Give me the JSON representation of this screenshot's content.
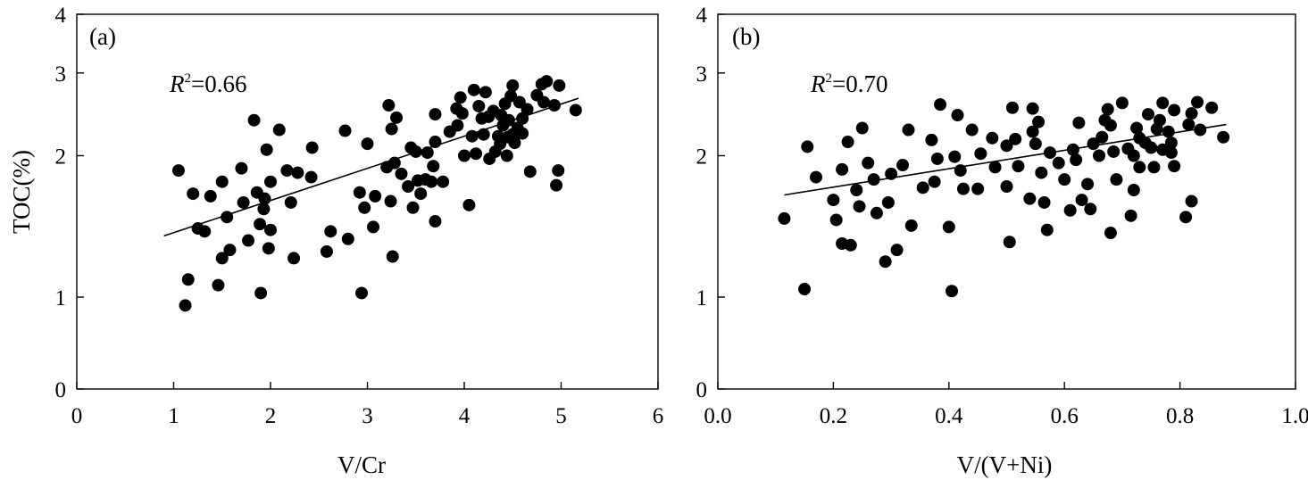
{
  "shared_y_axis": {
    "label": "TOC(%)",
    "ticks": [
      "0",
      "1",
      "2",
      "3",
      "4"
    ]
  },
  "chart_data": [
    {
      "type": "scatter",
      "panel_label": "(a)",
      "xlabel": "V/Cr",
      "ylabel": "TOC(%)",
      "xlim": [
        0,
        6
      ],
      "ylim": [
        0,
        4
      ],
      "x_ticks": [
        "0",
        "1",
        "2",
        "3",
        "4",
        "5",
        "6"
      ],
      "y_ticks": [
        "0",
        "1",
        "2",
        "3",
        "4"
      ],
      "y_scale": "log",
      "r2_text": "=0.66",
      "trend_line": {
        "x": [
          0.9,
          5.18
        ],
        "y": [
          1.35,
          2.65
        ]
      },
      "points": [
        [
          1.12,
          0.96
        ],
        [
          1.15,
          1.09
        ],
        [
          1.2,
          1.66
        ],
        [
          1.25,
          1.4
        ],
        [
          1.05,
          1.86
        ],
        [
          1.32,
          1.38
        ],
        [
          1.38,
          1.64
        ],
        [
          1.46,
          1.06
        ],
        [
          1.5,
          1.76
        ],
        [
          1.5,
          1.21
        ],
        [
          1.55,
          1.48
        ],
        [
          1.58,
          1.26
        ],
        [
          1.7,
          1.88
        ],
        [
          1.72,
          1.59
        ],
        [
          1.77,
          1.32
        ],
        [
          1.83,
          2.38
        ],
        [
          1.86,
          1.67
        ],
        [
          1.89,
          1.43
        ],
        [
          1.9,
          1.02
        ],
        [
          1.93,
          1.54
        ],
        [
          1.96,
          2.06
        ],
        [
          1.98,
          1.27
        ],
        [
          2.0,
          1.76
        ],
        [
          2.0,
          1.39
        ],
        [
          1.94,
          1.62
        ],
        [
          2.09,
          2.27
        ],
        [
          2.17,
          1.86
        ],
        [
          2.21,
          1.59
        ],
        [
          2.24,
          1.21
        ],
        [
          2.28,
          1.84
        ],
        [
          2.42,
          1.8
        ],
        [
          2.43,
          2.08
        ],
        [
          2.58,
          1.25
        ],
        [
          2.62,
          1.38
        ],
        [
          2.77,
          2.26
        ],
        [
          2.8,
          1.33
        ],
        [
          2.92,
          1.67
        ],
        [
          2.94,
          1.02
        ],
        [
          2.97,
          1.55
        ],
        [
          3.0,
          2.12
        ],
        [
          3.06,
          1.41
        ],
        [
          3.08,
          1.64
        ],
        [
          3.2,
          1.89
        ],
        [
          3.22,
          2.56
        ],
        [
          3.24,
          1.6
        ],
        [
          3.25,
          2.28
        ],
        [
          3.26,
          1.22
        ],
        [
          3.28,
          1.93
        ],
        [
          3.3,
          2.41
        ],
        [
          3.35,
          1.83
        ],
        [
          3.42,
          1.72
        ],
        [
          3.45,
          2.08
        ],
        [
          3.47,
          1.55
        ],
        [
          3.5,
          2.04
        ],
        [
          3.52,
          1.77
        ],
        [
          3.55,
          1.66
        ],
        [
          3.6,
          1.78
        ],
        [
          3.62,
          2.03
        ],
        [
          3.66,
          1.76
        ],
        [
          3.68,
          1.9
        ],
        [
          3.7,
          1.45
        ],
        [
          3.7,
          2.45
        ],
        [
          3.7,
          2.14
        ],
        [
          3.78,
          1.76
        ],
        [
          3.85,
          2.25
        ],
        [
          3.92,
          2.52
        ],
        [
          3.93,
          2.32
        ],
        [
          3.96,
          2.66
        ],
        [
          3.98,
          2.46
        ],
        [
          4.0,
          2.0
        ],
        [
          4.05,
          1.57
        ],
        [
          4.08,
          2.2
        ],
        [
          4.1,
          2.76
        ],
        [
          4.12,
          2.02
        ],
        [
          4.15,
          2.55
        ],
        [
          4.18,
          2.4
        ],
        [
          4.2,
          2.22
        ],
        [
          4.22,
          2.73
        ],
        [
          4.25,
          2.42
        ],
        [
          4.26,
          1.97
        ],
        [
          4.3,
          2.49
        ],
        [
          4.32,
          2.04
        ],
        [
          4.35,
          2.2
        ],
        [
          4.37,
          2.12
        ],
        [
          4.38,
          2.44
        ],
        [
          4.4,
          2.32
        ],
        [
          4.42,
          2.58
        ],
        [
          4.44,
          2.0
        ],
        [
          4.45,
          2.19
        ],
        [
          4.46,
          2.38
        ],
        [
          4.48,
          2.68
        ],
        [
          4.5,
          2.22
        ],
        [
          4.5,
          2.82
        ],
        [
          4.52,
          2.13
        ],
        [
          4.55,
          2.29
        ],
        [
          4.57,
          2.6
        ],
        [
          4.6,
          2.4
        ],
        [
          4.6,
          2.23
        ],
        [
          4.65,
          2.51
        ],
        [
          4.68,
          1.85
        ],
        [
          4.75,
          2.69
        ],
        [
          4.8,
          2.84
        ],
        [
          4.82,
          2.6
        ],
        [
          4.85,
          2.88
        ],
        [
          4.93,
          2.56
        ],
        [
          4.95,
          1.73
        ],
        [
          4.97,
          1.86
        ],
        [
          4.98,
          2.82
        ],
        [
          5.15,
          2.5
        ]
      ]
    },
    {
      "type": "scatter",
      "panel_label": "(b)",
      "xlabel": "V/(V+Ni)",
      "ylabel": "",
      "xlim": [
        0.0,
        1.0
      ],
      "ylim": [
        0,
        4
      ],
      "x_ticks": [
        "0.0",
        "0.2",
        "0.4",
        "0.6",
        "0.8",
        "1.0"
      ],
      "y_ticks": [
        "0",
        "1",
        "2",
        "3",
        "4"
      ],
      "y_scale": "log",
      "r2_text": "=0.70",
      "trend_line": {
        "x": [
          0.115,
          0.88
        ],
        "y": [
          1.65,
          2.33
        ]
      },
      "points": [
        [
          0.115,
          1.47
        ],
        [
          0.15,
          1.04
        ],
        [
          0.155,
          2.09
        ],
        [
          0.17,
          1.8
        ],
        [
          0.2,
          1.61
        ],
        [
          0.205,
          1.46
        ],
        [
          0.215,
          1.3
        ],
        [
          0.215,
          1.87
        ],
        [
          0.225,
          2.14
        ],
        [
          0.23,
          1.29
        ],
        [
          0.24,
          1.69
        ],
        [
          0.245,
          1.56
        ],
        [
          0.25,
          2.29
        ],
        [
          0.26,
          1.93
        ],
        [
          0.27,
          1.78
        ],
        [
          0.275,
          1.51
        ],
        [
          0.29,
          1.19
        ],
        [
          0.295,
          1.59
        ],
        [
          0.3,
          1.83
        ],
        [
          0.31,
          1.26
        ],
        [
          0.32,
          1.91
        ],
        [
          0.33,
          2.27
        ],
        [
          0.335,
          1.42
        ],
        [
          0.355,
          1.71
        ],
        [
          0.37,
          2.16
        ],
        [
          0.375,
          1.76
        ],
        [
          0.38,
          1.97
        ],
        [
          0.385,
          2.57
        ],
        [
          0.4,
          1.41
        ],
        [
          0.405,
          1.03
        ],
        [
          0.41,
          1.99
        ],
        [
          0.415,
          2.44
        ],
        [
          0.42,
          1.86
        ],
        [
          0.425,
          1.7
        ],
        [
          0.44,
          2.27
        ],
        [
          0.45,
          1.7
        ],
        [
          0.455,
          2.02
        ],
        [
          0.475,
          2.18
        ],
        [
          0.48,
          1.89
        ],
        [
          0.5,
          1.72
        ],
        [
          0.5,
          2.1
        ],
        [
          0.505,
          1.31
        ],
        [
          0.51,
          2.53
        ],
        [
          0.515,
          2.17
        ],
        [
          0.52,
          1.9
        ],
        [
          0.54,
          1.62
        ],
        [
          0.545,
          2.25
        ],
        [
          0.545,
          2.52
        ],
        [
          0.55,
          2.12
        ],
        [
          0.555,
          2.36
        ],
        [
          0.56,
          1.84
        ],
        [
          0.565,
          1.59
        ],
        [
          0.57,
          1.39
        ],
        [
          0.575,
          2.03
        ],
        [
          0.59,
          1.93
        ],
        [
          0.6,
          1.78
        ],
        [
          0.61,
          1.53
        ],
        [
          0.615,
          2.06
        ],
        [
          0.62,
          1.96
        ],
        [
          0.625,
          2.35
        ],
        [
          0.63,
          1.61
        ],
        [
          0.64,
          1.74
        ],
        [
          0.645,
          1.54
        ],
        [
          0.65,
          2.12
        ],
        [
          0.66,
          2.0
        ],
        [
          0.665,
          2.19
        ],
        [
          0.67,
          2.38
        ],
        [
          0.675,
          2.51
        ],
        [
          0.68,
          2.32
        ],
        [
          0.68,
          1.37
        ],
        [
          0.685,
          2.04
        ],
        [
          0.69,
          1.78
        ],
        [
          0.7,
          2.59
        ],
        [
          0.71,
          2.07
        ],
        [
          0.715,
          1.49
        ],
        [
          0.72,
          2.0
        ],
        [
          0.72,
          1.69
        ],
        [
          0.725,
          2.29
        ],
        [
          0.73,
          1.89
        ],
        [
          0.73,
          2.18
        ],
        [
          0.74,
          2.13
        ],
        [
          0.745,
          2.45
        ],
        [
          0.75,
          2.08
        ],
        [
          0.755,
          1.89
        ],
        [
          0.76,
          2.28
        ],
        [
          0.765,
          2.38
        ],
        [
          0.77,
          2.06
        ],
        [
          0.77,
          2.59
        ],
        [
          0.78,
          2.25
        ],
        [
          0.785,
          2.13
        ],
        [
          0.785,
          2.03
        ],
        [
          0.79,
          1.9
        ],
        [
          0.79,
          2.5
        ],
        [
          0.81,
          1.48
        ],
        [
          0.815,
          2.33
        ],
        [
          0.82,
          2.46
        ],
        [
          0.82,
          1.6
        ],
        [
          0.83,
          2.6
        ],
        [
          0.835,
          2.27
        ],
        [
          0.855,
          2.53
        ],
        [
          0.875,
          2.19
        ]
      ]
    }
  ]
}
